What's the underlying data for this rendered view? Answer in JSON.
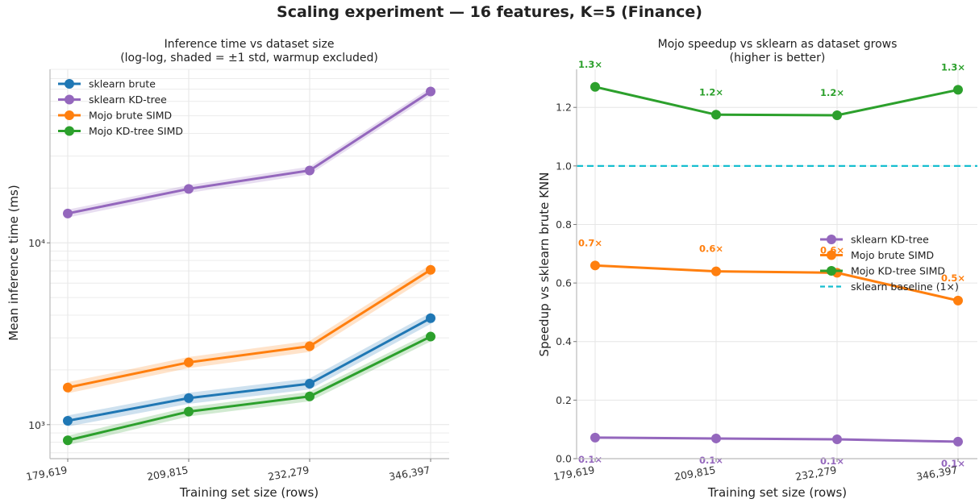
{
  "figure": {
    "title": "Scaling experiment — 16 features, K=5  (Finance)"
  },
  "chart_data": [
    {
      "type": "line",
      "title": "Inference time vs dataset size",
      "subtitle": "(log-log, shaded = ±1 std, warmup excluded)",
      "xlabel": "Training set size (rows)",
      "ylabel": "Mean inference time (ms)",
      "x": [
        179619,
        209815,
        232279,
        346397
      ],
      "x_tick_labels": [
        "179,619",
        "209,815",
        "232,279",
        "346,397"
      ],
      "yscale": "log",
      "y_tick_labels": [
        "10³",
        "10⁴"
      ],
      "ylim": [
        650,
        90000
      ],
      "grid": true,
      "legend_position": "upper-left",
      "series": [
        {
          "name": "sklearn brute",
          "color": "#1f77b4",
          "values": [
            1050,
            1400,
            1680,
            3850
          ],
          "std_frac": 0.07
        },
        {
          "name": "sklearn KD-tree",
          "color": "#9467bd",
          "values": [
            14500,
            19800,
            25000,
            68000
          ],
          "std_frac": 0.05
        },
        {
          "name": "Mojo brute SIMD",
          "color": "#ff7f0e",
          "values": [
            1600,
            2200,
            2700,
            7100
          ],
          "std_frac": 0.07
        },
        {
          "name": "Mojo KD-tree SIMD",
          "color": "#2ca02c",
          "values": [
            820,
            1180,
            1430,
            3050
          ],
          "std_frac": 0.06
        }
      ]
    },
    {
      "type": "line",
      "title": "Mojo speedup vs sklearn as dataset grows",
      "subtitle": "(higher is better)",
      "xlabel": "Training set size (rows)",
      "ylabel": "Speedup vs sklearn brute KNN",
      "x_tick_labels": [
        "179,619",
        "209,815",
        "232,279",
        "346,397"
      ],
      "ylim": [
        0,
        1.33
      ],
      "y_ticks": [
        0.0,
        0.2,
        0.4,
        0.6,
        0.8,
        1.0,
        1.2
      ],
      "y_tick_labels": [
        "0.0",
        "0.2",
        "0.4",
        "0.6",
        "0.8",
        "1.0",
        "1.2"
      ],
      "grid": true,
      "legend_position": "center-right",
      "baseline": {
        "name": "sklearn baseline (1×)",
        "value": 1.0,
        "color": "#17becf"
      },
      "series": [
        {
          "name": "sklearn KD-tree",
          "color": "#9467bd",
          "values": [
            0.072,
            0.069,
            0.066,
            0.058
          ],
          "labels": [
            "0.1×",
            "0.1×",
            "0.1×",
            "0.1×"
          ]
        },
        {
          "name": "Mojo brute SIMD",
          "color": "#ff7f0e",
          "values": [
            0.66,
            0.64,
            0.635,
            0.54
          ],
          "labels": [
            "0.7×",
            "0.6×",
            "0.6×",
            "0.5×"
          ]
        },
        {
          "name": "Mojo KD-tree SIMD",
          "color": "#2ca02c",
          "values": [
            1.27,
            1.175,
            1.173,
            1.26
          ],
          "labels": [
            "1.3×",
            "1.2×",
            "1.2×",
            "1.3×"
          ]
        }
      ]
    }
  ]
}
